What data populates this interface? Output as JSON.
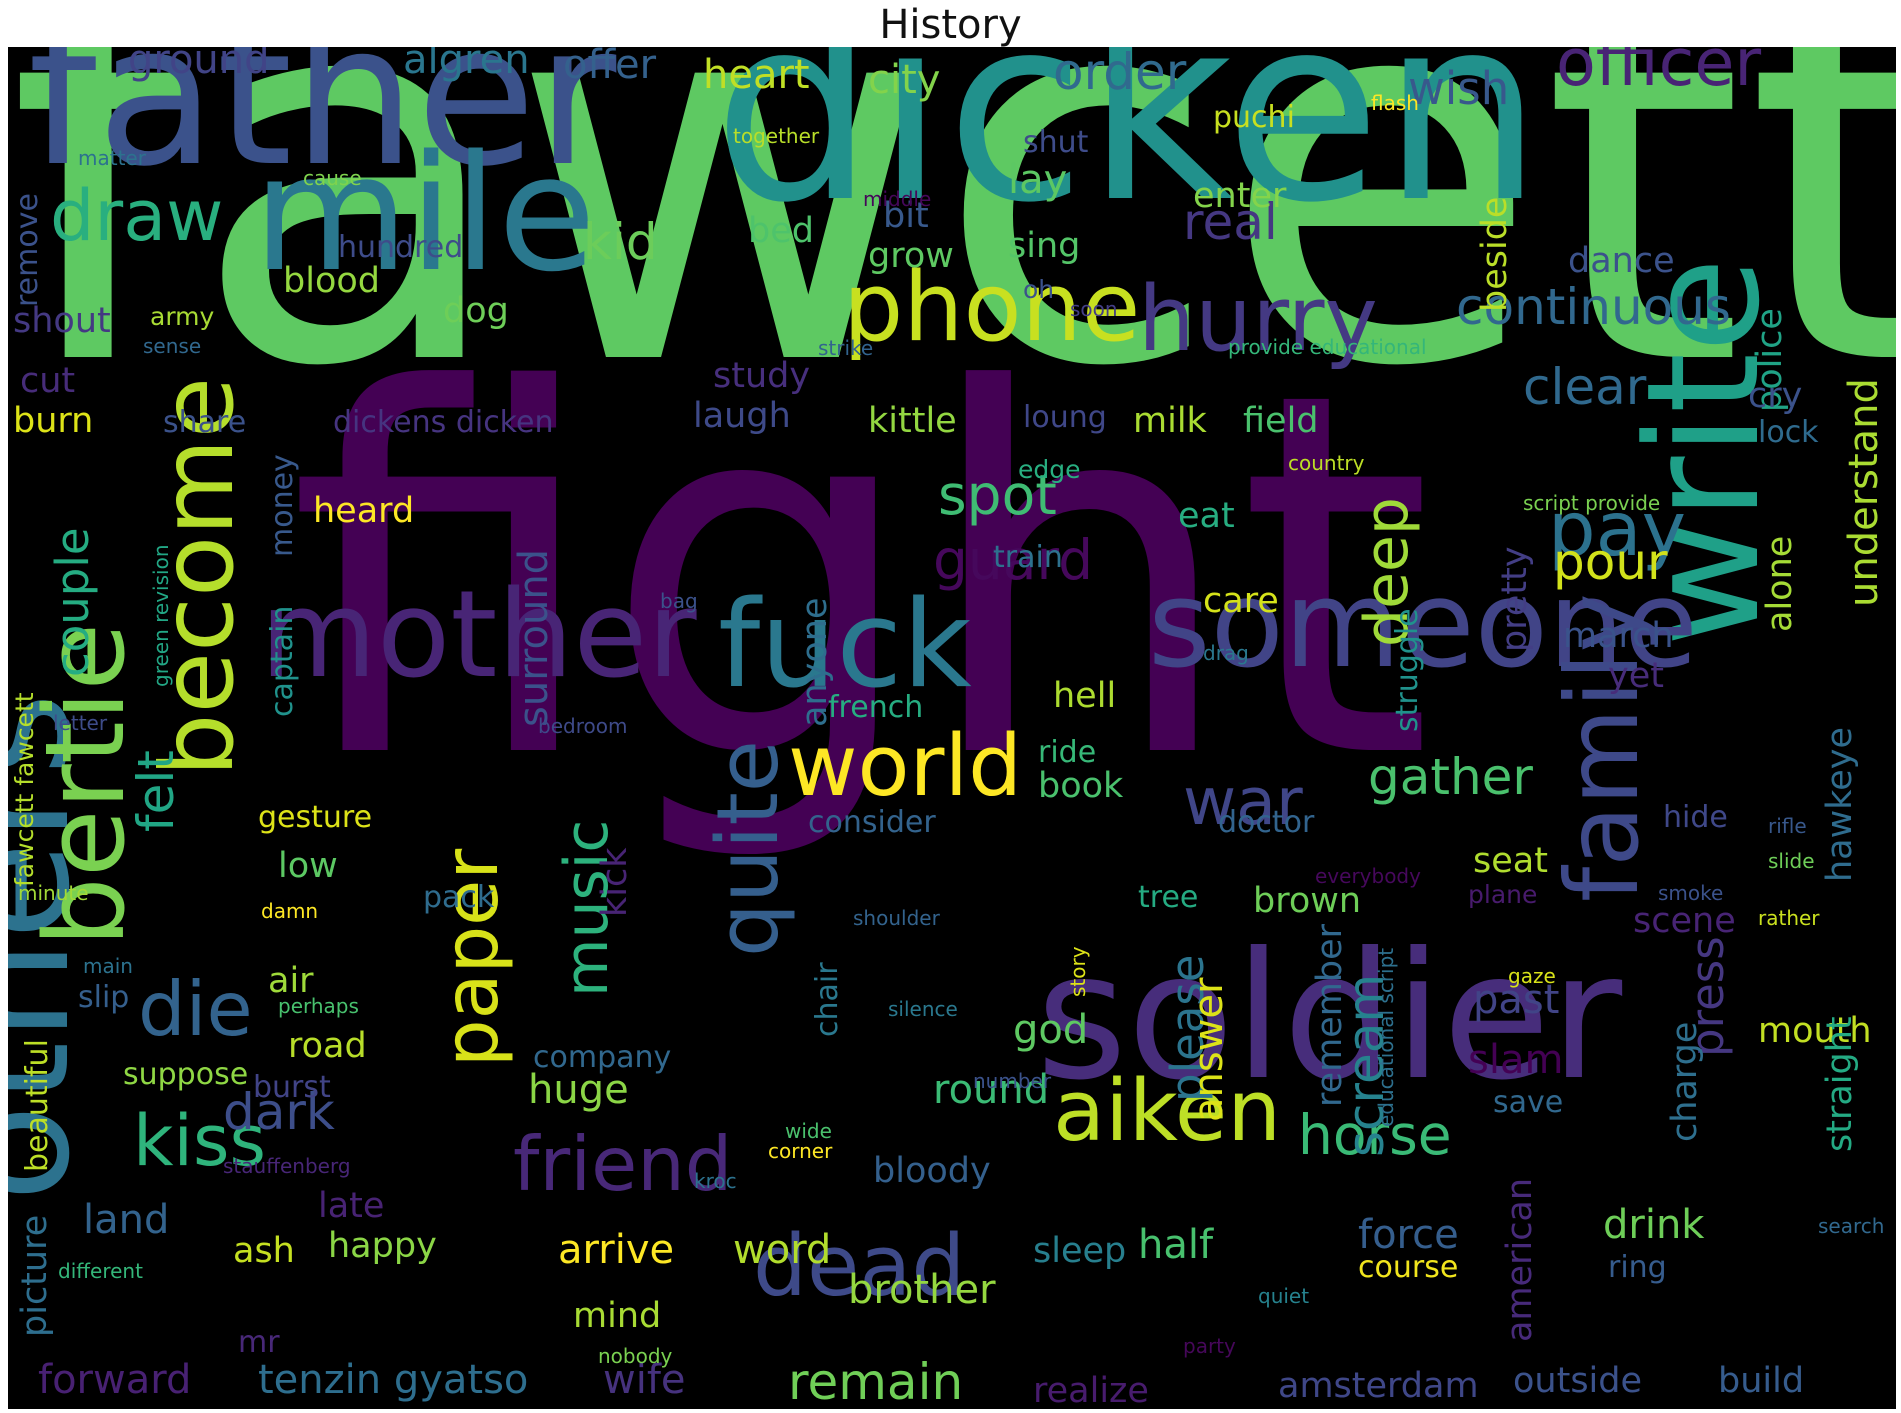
{
  "title": "History",
  "words": [
    {
      "text": "fawcett",
      "color": "#5ec962"
    },
    {
      "text": "fight",
      "color": "#440154"
    },
    {
      "text": "dicken",
      "color": "#21918c"
    },
    {
      "text": "father",
      "color": "#3b528b"
    },
    {
      "text": "mile",
      "color": "#2a788e"
    },
    {
      "text": "others",
      "color": "#2c728e"
    },
    {
      "text": "soldier",
      "color": "#472d7b"
    },
    {
      "text": "write",
      "color": "#1fa088"
    },
    {
      "text": "someone",
      "color": "#414487"
    },
    {
      "text": "mother",
      "color": "#482576"
    },
    {
      "text": "fuck",
      "color": "#2a788e"
    },
    {
      "text": "become",
      "color": "#b5de2b"
    },
    {
      "text": "bertie",
      "color": "#7ad151"
    },
    {
      "text": "family",
      "color": "#3e4989"
    },
    {
      "text": "phone",
      "color": "#c8e020"
    },
    {
      "text": "world",
      "color": "#fde725"
    },
    {
      "text": "hurry",
      "color": "#443983"
    },
    {
      "text": "paper",
      "color": "#d8e219"
    },
    {
      "text": "quite",
      "color": "#355f8d"
    },
    {
      "text": "aiken",
      "color": "#bddf26"
    },
    {
      "text": "friend",
      "color": "#482878"
    },
    {
      "text": "dead",
      "color": "#3e4a89"
    },
    {
      "text": "war",
      "color": "#404688"
    },
    {
      "text": "die",
      "color": "#33638d"
    },
    {
      "text": "kiss",
      "color": "#2fb47c"
    },
    {
      "text": "music",
      "color": "#2db27d"
    },
    {
      "text": "pay",
      "color": "#2c728e"
    },
    {
      "text": "deep",
      "color": "#a0da39"
    },
    {
      "text": "draw",
      "color": "#29af7f"
    },
    {
      "text": "officer",
      "color": "#482475"
    },
    {
      "text": "continuous",
      "color": "#31688e"
    },
    {
      "text": "horse",
      "color": "#3aba76"
    },
    {
      "text": "gather",
      "color": "#4ac16d"
    },
    {
      "text": "clear",
      "color": "#30698e"
    },
    {
      "text": "spot",
      "color": "#3fbc73"
    },
    {
      "text": "scream",
      "color": "#26828e"
    },
    {
      "text": "guard",
      "color": "#46085c"
    },
    {
      "text": "pour",
      "color": "#d2e21b"
    },
    {
      "text": "felt",
      "color": "#21a685"
    },
    {
      "text": "couple",
      "color": "#25ac82"
    },
    {
      "text": "remain",
      "color": "#70cf57"
    },
    {
      "text": "order",
      "color": "#306a8e"
    },
    {
      "text": "wish",
      "color": "#38588c"
    },
    {
      "text": "real",
      "color": "#453882"
    },
    {
      "text": "kid",
      "color": "#6ccd5a"
    },
    {
      "text": "heart",
      "color": "#c0df25"
    },
    {
      "text": "city",
      "color": "#83d34b"
    },
    {
      "text": "ground",
      "color": "#414487"
    },
    {
      "text": "algren",
      "color": "#2a768e"
    },
    {
      "text": "offer",
      "color": "#34618d"
    },
    {
      "text": "understand",
      "color": "#aadc32"
    },
    {
      "text": "please",
      "color": "#2b748e"
    },
    {
      "text": "surround",
      "color": "#3b528b"
    },
    {
      "text": "press",
      "color": "#453781"
    },
    {
      "text": "dark",
      "color": "#3d4e8a"
    },
    {
      "text": "land",
      "color": "#33638d"
    },
    {
      "text": "forward",
      "color": "#482173"
    },
    {
      "text": "tenzin gyatso",
      "color": "#2e6e8e"
    },
    {
      "text": "wife",
      "color": "#46327e"
    },
    {
      "text": "amsterdam",
      "color": "#3f4788"
    },
    {
      "text": "outside",
      "color": "#3b528b"
    },
    {
      "text": "build",
      "color": "#365c8d"
    },
    {
      "text": "realize",
      "color": "#481c6e"
    },
    {
      "text": "brother",
      "color": "#95d840"
    },
    {
      "text": "arrive",
      "color": "#fde725"
    },
    {
      "text": "word",
      "color": "#b2dd2d"
    },
    {
      "text": "half",
      "color": "#48c16e"
    },
    {
      "text": "sleep",
      "color": "#277f8e"
    },
    {
      "text": "force",
      "color": "#355e8d"
    },
    {
      "text": "drink",
      "color": "#6ece58"
    },
    {
      "text": "course",
      "color": "#f1e51d"
    },
    {
      "text": "ring",
      "color": "#365c8d"
    },
    {
      "text": "american",
      "color": "#472a7a"
    },
    {
      "text": "answer",
      "color": "#dde318"
    },
    {
      "text": "remember",
      "color": "#31688e"
    },
    {
      "text": "bloody",
      "color": "#34608d"
    },
    {
      "text": "huge",
      "color": "#8bd646"
    },
    {
      "text": "round",
      "color": "#3bbb75"
    },
    {
      "text": "god",
      "color": "#5ec962"
    },
    {
      "text": "past",
      "color": "#414487"
    },
    {
      "text": "slam",
      "color": "#440154"
    },
    {
      "text": "save",
      "color": "#31688e"
    },
    {
      "text": "charge",
      "color": "#2e6f8e"
    },
    {
      "text": "mouth",
      "color": "#c2df23"
    },
    {
      "text": "straight",
      "color": "#24aa83"
    },
    {
      "text": "scene",
      "color": "#482475"
    },
    {
      "text": "hawkeye",
      "color": "#2f6c8e"
    },
    {
      "text": "alone",
      "color": "#a5db36"
    },
    {
      "text": "police",
      "color": "#20a386"
    },
    {
      "text": "cry",
      "color": "#3b528b"
    },
    {
      "text": "lock",
      "color": "#2f6b8e"
    },
    {
      "text": "beside",
      "color": "#bade28"
    },
    {
      "text": "dance",
      "color": "#3b528b"
    },
    {
      "text": "enter",
      "color": "#84d44b"
    },
    {
      "text": "lay",
      "color": "#5cc863"
    },
    {
      "text": "shut",
      "color": "#3e4c8a"
    },
    {
      "text": "puchi",
      "color": "#c8e020"
    },
    {
      "text": "sing",
      "color": "#54c568"
    },
    {
      "text": "grow",
      "color": "#5ec962"
    },
    {
      "text": "bit",
      "color": "#38598c"
    },
    {
      "text": "bed",
      "color": "#4ec36b"
    },
    {
      "text": "study",
      "color": "#472f7d"
    },
    {
      "text": "laugh",
      "color": "#3e4a89"
    },
    {
      "text": "kittle",
      "color": "#93d741"
    },
    {
      "text": "milk",
      "color": "#aadc32"
    },
    {
      "text": "field",
      "color": "#4ac16d"
    },
    {
      "text": "loung",
      "color": "#3f4788"
    },
    {
      "text": "edge",
      "color": "#28ae80"
    },
    {
      "text": "eat",
      "color": "#27ad81"
    },
    {
      "text": "train",
      "color": "#2d718e"
    },
    {
      "text": "care",
      "color": "#d5e21a"
    },
    {
      "text": "march",
      "color": "#3a538b"
    },
    {
      "text": "yet",
      "color": "#472c7a"
    },
    {
      "text": "pretty",
      "color": "#433e85"
    },
    {
      "text": "struggle",
      "color": "#20928c"
    },
    {
      "text": "hell",
      "color": "#addc30"
    },
    {
      "text": "french",
      "color": "#26ad81"
    },
    {
      "text": "anyone",
      "color": "#2e6e8e"
    },
    {
      "text": "ride",
      "color": "#37b878"
    },
    {
      "text": "book",
      "color": "#4ac16d"
    },
    {
      "text": "consider",
      "color": "#33638d"
    },
    {
      "text": "seat",
      "color": "#b0dd2f"
    },
    {
      "text": "brown",
      "color": "#6ece58"
    },
    {
      "text": "doctor",
      "color": "#32648e"
    },
    {
      "text": "tree",
      "color": "#25ab82"
    },
    {
      "text": "plane",
      "color": "#481b6d"
    },
    {
      "text": "hide",
      "color": "#3f4889"
    },
    {
      "text": "rifle",
      "color": "#38588c"
    },
    {
      "text": "slide",
      "color": "#6ece58"
    },
    {
      "text": "smoke",
      "color": "#3b528b"
    },
    {
      "text": "rather",
      "color": "#cae11f"
    },
    {
      "text": "gaze",
      "color": "#d8e219"
    },
    {
      "text": "search",
      "color": "#31688e"
    },
    {
      "text": "quiet",
      "color": "#26828e"
    },
    {
      "text": "party",
      "color": "#46075a"
    },
    {
      "text": "nobody",
      "color": "#7ad151"
    },
    {
      "text": "mind",
      "color": "#a8db34"
    },
    {
      "text": "mr",
      "color": "#482878"
    },
    {
      "text": "picture",
      "color": "#2e6e8e"
    },
    {
      "text": "different",
      "color": "#34b679"
    },
    {
      "text": "ash",
      "color": "#c5e021"
    },
    {
      "text": "happy",
      "color": "#8bd646"
    },
    {
      "text": "late",
      "color": "#482374"
    },
    {
      "text": "beautiful",
      "color": "#bddf26"
    },
    {
      "text": "burst",
      "color": "#414487"
    },
    {
      "text": "suppose",
      "color": "#8fd744"
    },
    {
      "text": "road",
      "color": "#b8de29"
    },
    {
      "text": "company",
      "color": "#31688e"
    },
    {
      "text": "air",
      "color": "#9fda3a"
    },
    {
      "text": "slip",
      "color": "#355f8d"
    },
    {
      "text": "perhaps",
      "color": "#48c16e"
    },
    {
      "text": "main",
      "color": "#2c728e"
    },
    {
      "text": "low",
      "color": "#5cc863"
    },
    {
      "text": "pack",
      "color": "#2f6c8e"
    },
    {
      "text": "kick",
      "color": "#482475"
    },
    {
      "text": "chair",
      "color": "#2a788e"
    },
    {
      "text": "gesture",
      "color": "#dde318"
    },
    {
      "text": "damn",
      "color": "#fde725"
    },
    {
      "text": "minute",
      "color": "#a2da37"
    },
    {
      "text": "fawcett fawcett",
      "color": "#b5de2b"
    },
    {
      "text": "letter",
      "color": "#3e4c8a"
    },
    {
      "text": "green revision",
      "color": "#22a785"
    },
    {
      "text": "captain",
      "color": "#20928c"
    },
    {
      "text": "money",
      "color": "#38598c"
    },
    {
      "text": "heard",
      "color": "#fde725"
    },
    {
      "text": "burn",
      "color": "#dde318"
    },
    {
      "text": "cut",
      "color": "#472c7a"
    },
    {
      "text": "share",
      "color": "#3b528b"
    },
    {
      "text": "dickens dicken",
      "color": "#463480"
    },
    {
      "text": "shout",
      "color": "#443983"
    },
    {
      "text": "army",
      "color": "#a8db34"
    },
    {
      "text": "sense",
      "color": "#31688e"
    },
    {
      "text": "dog",
      "color": "#6ece58"
    },
    {
      "text": "blood",
      "color": "#95d840"
    },
    {
      "text": "hundred",
      "color": "#3e4c8a"
    },
    {
      "text": "remove",
      "color": "#3b528b"
    },
    {
      "text": "cause",
      "color": "#7fd34e"
    },
    {
      "text": "matter",
      "color": "#2c728e"
    },
    {
      "text": "together",
      "color": "#b8de29"
    },
    {
      "text": "middle",
      "color": "#46075a"
    },
    {
      "text": "oh",
      "color": "#3b528b"
    },
    {
      "text": "soon",
      "color": "#433e85"
    },
    {
      "text": "strike",
      "color": "#32648e"
    },
    {
      "text": "provide educational",
      "color": "#34b679"
    },
    {
      "text": "country",
      "color": "#bddf26"
    },
    {
      "text": "script provide",
      "color": "#7ad151"
    },
    {
      "text": "bag",
      "color": "#3b528b"
    },
    {
      "text": "drag",
      "color": "#2a788e"
    },
    {
      "text": "bedroom",
      "color": "#3e4a89"
    },
    {
      "text": "everybody",
      "color": "#46085c"
    },
    {
      "text": "shoulder",
      "color": "#33638d"
    },
    {
      "text": "story",
      "color": "#dde318"
    },
    {
      "text": "educational script",
      "color": "#2d708e"
    },
    {
      "text": "silence",
      "color": "#2a788e"
    },
    {
      "text": "number",
      "color": "#3b528b"
    },
    {
      "text": "wide",
      "color": "#4ac16d"
    },
    {
      "text": "corner",
      "color": "#fde725"
    },
    {
      "text": "kroc",
      "color": "#2c728e"
    },
    {
      "text": "stauffenberg",
      "color": "#482677"
    },
    {
      "text": "flash",
      "color": "#fde725"
    }
  ]
}
